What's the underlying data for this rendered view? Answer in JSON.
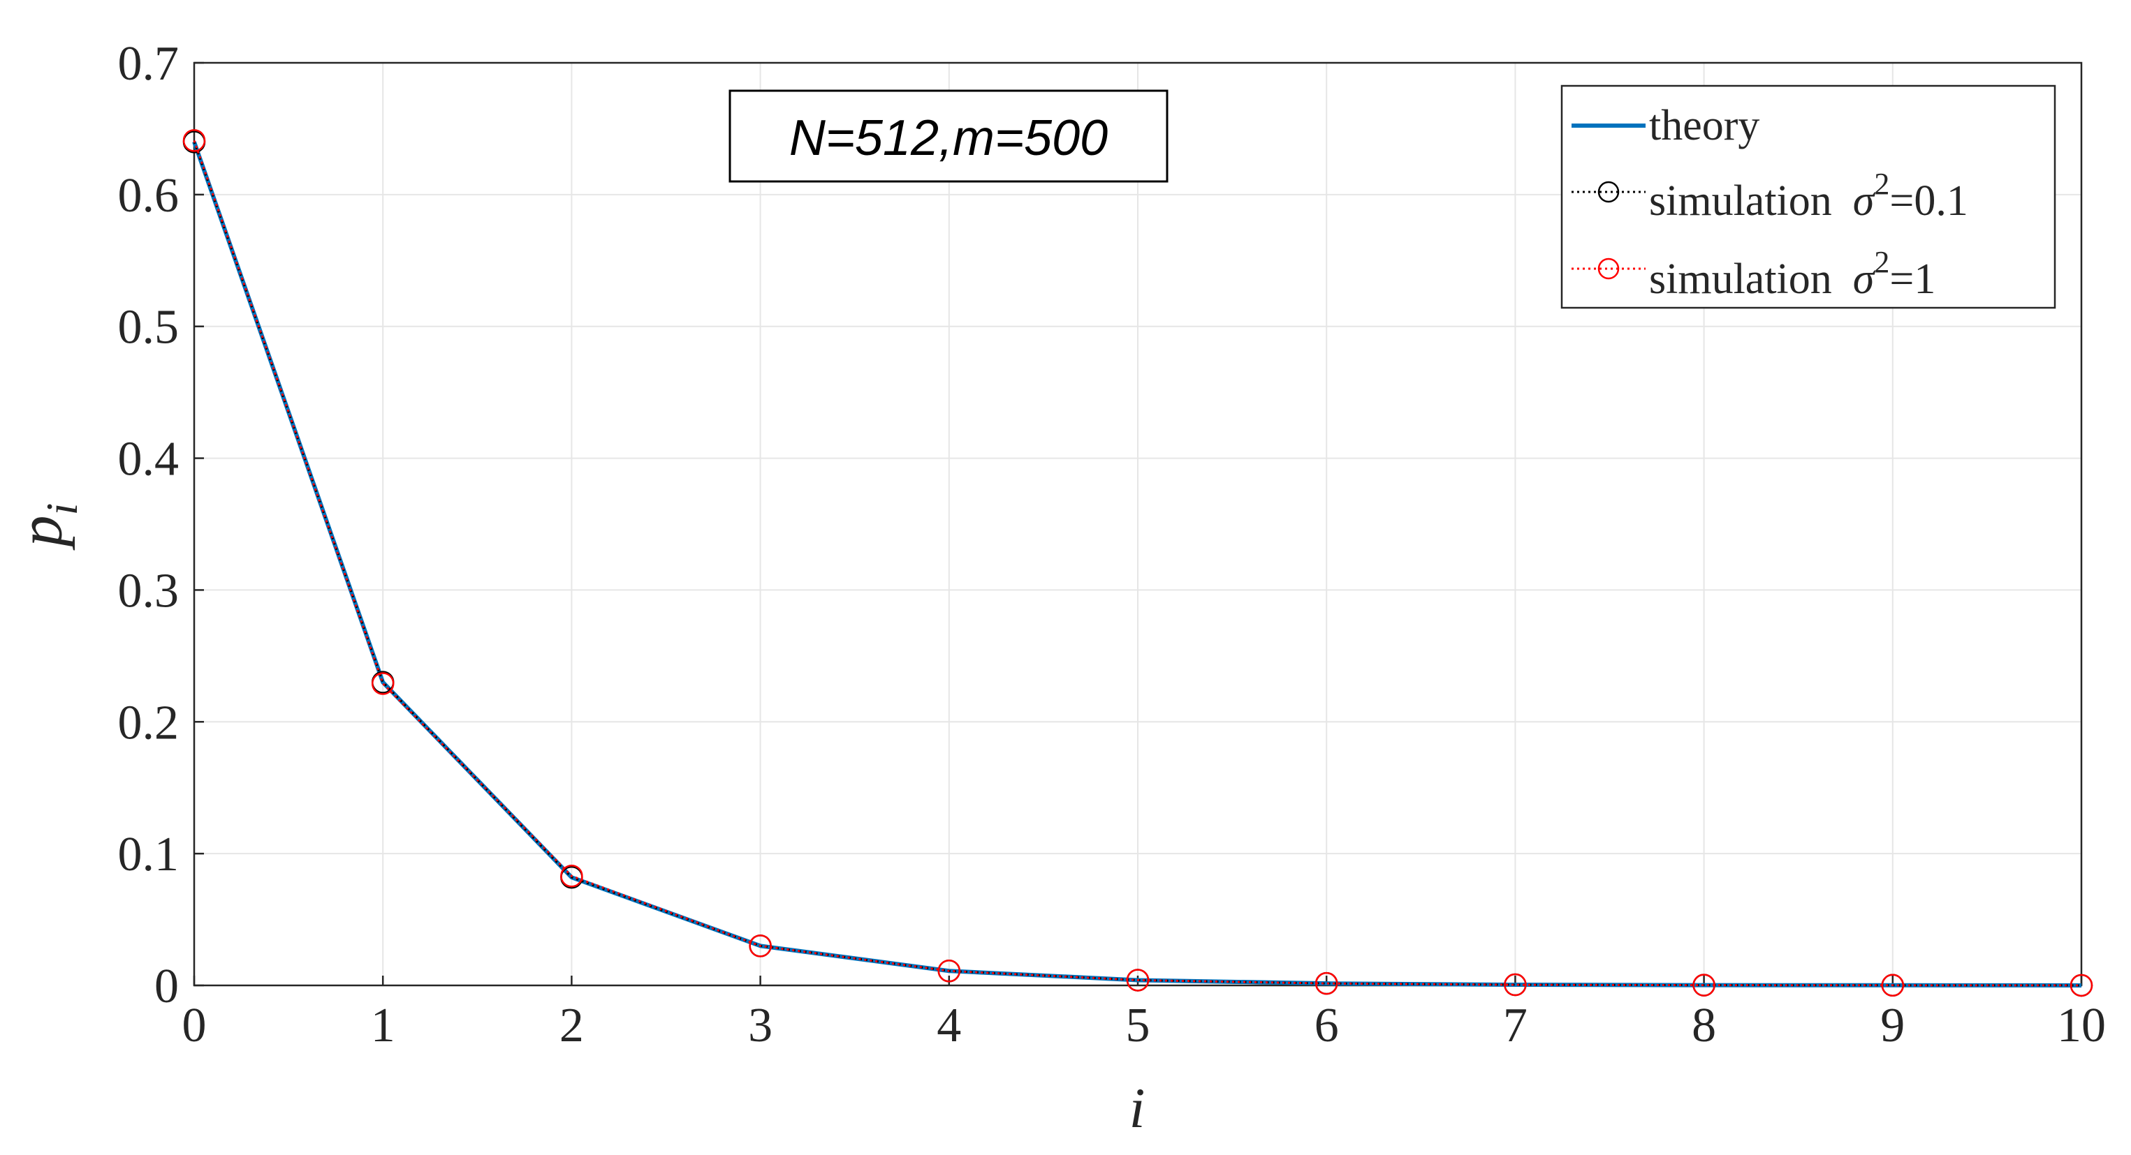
{
  "chart_data": {
    "type": "line",
    "x": [
      0,
      1,
      2,
      3,
      4,
      5,
      6,
      7,
      8,
      9,
      10
    ],
    "xlabel": "i",
    "ylabel": {
      "base": "p",
      "sub": "i"
    },
    "xlim": [
      0,
      10
    ],
    "ylim": [
      0,
      0.7
    ],
    "xticks": [
      "0",
      "1",
      "2",
      "3",
      "4",
      "5",
      "6",
      "7",
      "8",
      "9",
      "10"
    ],
    "yticks": [
      "0",
      "0.1",
      "0.2",
      "0.3",
      "0.4",
      "0.5",
      "0.6",
      "0.7"
    ],
    "grid": true,
    "legend_position": "top-right",
    "annotation": "N=512,m=500",
    "series": [
      {
        "name": "theory",
        "style": "solid line",
        "color": "#0072BD",
        "values": [
          0.64,
          0.23,
          0.082,
          0.03,
          0.011,
          0.004,
          0.0015,
          0.0005,
          0.0002,
          0.0001,
          3e-05
        ]
      },
      {
        "name": "simulation σ²=0.1",
        "legend": {
          "text": "simulation",
          "sigma": "σ",
          "exp": "2",
          "value": "=0.1"
        },
        "style": "dotted line with circle markers",
        "color": "#000000",
        "values": [
          0.64,
          0.23,
          0.082,
          0.03,
          0.011,
          0.004,
          0.0015,
          0.0005,
          0.0002,
          0.0001,
          3e-05
        ]
      },
      {
        "name": "simulation σ²=1",
        "legend": {
          "text": "simulation",
          "sigma": "σ",
          "exp": "2",
          "value": "=1"
        },
        "style": "dotted line with circle markers",
        "color": "#FF0000",
        "values": [
          0.641,
          0.229,
          0.083,
          0.03,
          0.011,
          0.004,
          0.0015,
          0.0005,
          0.0002,
          0.0001,
          3e-05
        ]
      }
    ]
  }
}
